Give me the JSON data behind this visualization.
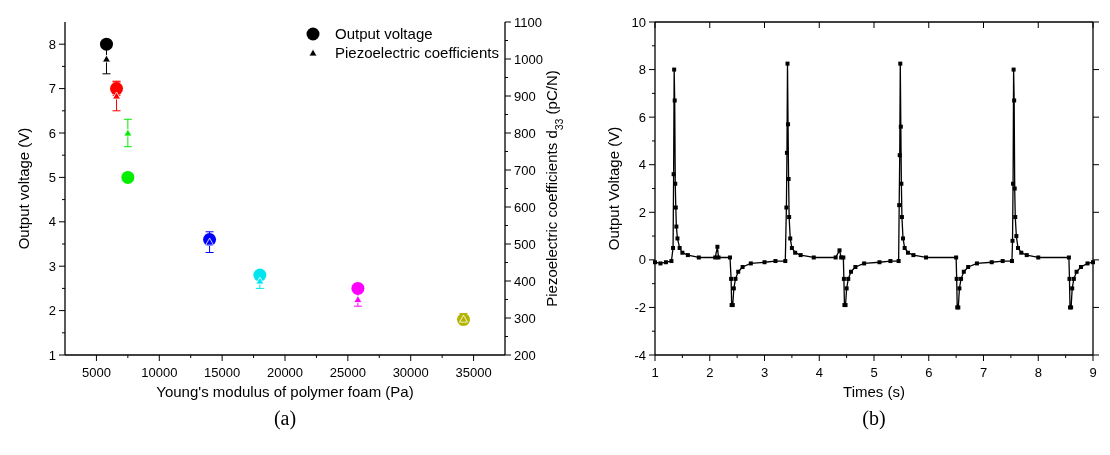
{
  "chart_data": [
    {
      "type": "scatter",
      "xlabel": "Young's modulus of polymer foam (Pa)",
      "ylabel": "Output voltage (V)",
      "y2label": "Piezoelectric coefficients d$_{33}$ (pC/N)",
      "xlim": [
        2500,
        37500
      ],
      "xticks": [
        5000,
        10000,
        15000,
        20000,
        25000,
        30000,
        35000
      ],
      "ylim": [
        1,
        8.5
      ],
      "yticks": [
        1,
        2,
        3,
        4,
        5,
        6,
        7,
        8
      ],
      "y2lim": [
        200,
        1100
      ],
      "y2ticks": [
        200,
        300,
        400,
        500,
        600,
        700,
        800,
        900,
        1000,
        1100
      ],
      "legend": "top right",
      "grid": false,
      "annotations": [
        "(a)"
      ],
      "series": [
        {
          "name": "Output voltage",
          "marker": "circle",
          "color": "#000000",
          "x": [
            5800,
            6600,
            7500,
            14000,
            18000,
            25800,
            34200
          ],
          "values": [
            8,
            7,
            5,
            3.6,
            2.8,
            2.5,
            1.8
          ],
          "colors": [
            "#000000",
            "#ff0000",
            "#00ee00",
            "#0000ff",
            "#00e5ee",
            "#ff00ff",
            "#b3b300"
          ],
          "errors": [
            null,
            0.15,
            null,
            0.1,
            null,
            null,
            null
          ]
        },
        {
          "name": "Piezoelectric coefficients",
          "marker": "triangle",
          "axis": "y2",
          "color": "#000000",
          "x": [
            5800,
            6600,
            7500,
            14000,
            18000,
            25800,
            34200
          ],
          "values": [
            1000,
            900,
            800,
            505,
            400,
            350,
            297
          ],
          "colors": [
            "#000000",
            "#ff0000",
            "#00ee00",
            "#0000ff",
            "#00e5ee",
            "#ff00ff",
            "#b3b300"
          ],
          "errors": [
            40,
            40,
            37,
            28,
            20,
            18,
            15
          ]
        }
      ]
    },
    {
      "type": "line",
      "xlabel": "Times (s)",
      "ylabel": "Output Voltage (V)",
      "xlim": [
        1,
        9
      ],
      "xticks": [
        1,
        2,
        3,
        4,
        5,
        6,
        7,
        8,
        9
      ],
      "ylim": [
        -4,
        10
      ],
      "yticks": [
        -4,
        -2,
        0,
        2,
        4,
        6,
        8,
        10
      ],
      "marker": "square",
      "line_style": "solid",
      "grid": false,
      "legend": false,
      "annotations": [
        "(b)"
      ],
      "series": [
        {
          "color": "#000000",
          "x": [
            1.0,
            1.1,
            1.2,
            1.3,
            1.33,
            1.34,
            1.35,
            1.36,
            1.37,
            1.38,
            1.39,
            1.41,
            1.45,
            1.5,
            1.6,
            1.8,
            2.1,
            2.14,
            2.16,
            2.37,
            2.39,
            2.4,
            2.42,
            2.44,
            2.47,
            2.52,
            2.6,
            2.75,
            3.0,
            3.2,
            3.38,
            3.4,
            3.41,
            3.42,
            3.43,
            3.44,
            3.45,
            3.47,
            3.5,
            3.56,
            3.66,
            3.9,
            4.3,
            4.37,
            4.4,
            4.44,
            4.45,
            4.46,
            4.48,
            4.5,
            4.53,
            4.58,
            4.66,
            4.82,
            5.1,
            5.3,
            5.45,
            5.46,
            5.47,
            5.48,
            5.49,
            5.5,
            5.51,
            5.53,
            5.56,
            5.62,
            5.72,
            5.95,
            6.5,
            6.51,
            6.52,
            6.54,
            6.56,
            6.59,
            6.64,
            6.72,
            6.88,
            7.15,
            7.35,
            7.52,
            7.53,
            7.54,
            7.55,
            7.56,
            7.57,
            7.58,
            7.6,
            7.63,
            7.69,
            7.79,
            8.0,
            8.56,
            8.57,
            8.58,
            8.6,
            8.62,
            8.65,
            8.7,
            8.78,
            8.9,
            9.0
          ],
          "values": [
            -0.1,
            -0.15,
            -0.1,
            -0.05,
            0.5,
            3.6,
            8.0,
            6.7,
            3.2,
            2.2,
            1.4,
            0.9,
            0.5,
            0.3,
            0.2,
            0.1,
            0.1,
            0.55,
            0.1,
            0.1,
            -0.8,
            -1.9,
            -1.9,
            -1.2,
            -0.8,
            -0.5,
            -0.3,
            -0.15,
            -0.1,
            -0.05,
            -0.05,
            2.2,
            4.5,
            8.25,
            5.7,
            3.4,
            1.8,
            0.9,
            0.5,
            0.3,
            0.2,
            0.1,
            0.1,
            0.4,
            0.1,
            0.1,
            -0.8,
            -1.9,
            -1.9,
            -1.2,
            -0.8,
            -0.5,
            -0.3,
            -0.15,
            -0.1,
            -0.05,
            -0.05,
            2.3,
            4.4,
            8.25,
            5.6,
            3.2,
            1.8,
            0.9,
            0.5,
            0.3,
            0.2,
            0.1,
            0.1,
            -0.8,
            -2.0,
            -2.0,
            -1.2,
            -0.8,
            -0.5,
            -0.3,
            -0.15,
            -0.1,
            -0.05,
            -0.05,
            0.8,
            3.2,
            8.0,
            6.7,
            3.0,
            1.8,
            1.0,
            0.5,
            0.3,
            0.2,
            0.1,
            0.1,
            -0.8,
            -2.0,
            -2.0,
            -1.2,
            -0.8,
            -0.5,
            -0.3,
            -0.15,
            -0.1
          ]
        }
      ]
    }
  ]
}
